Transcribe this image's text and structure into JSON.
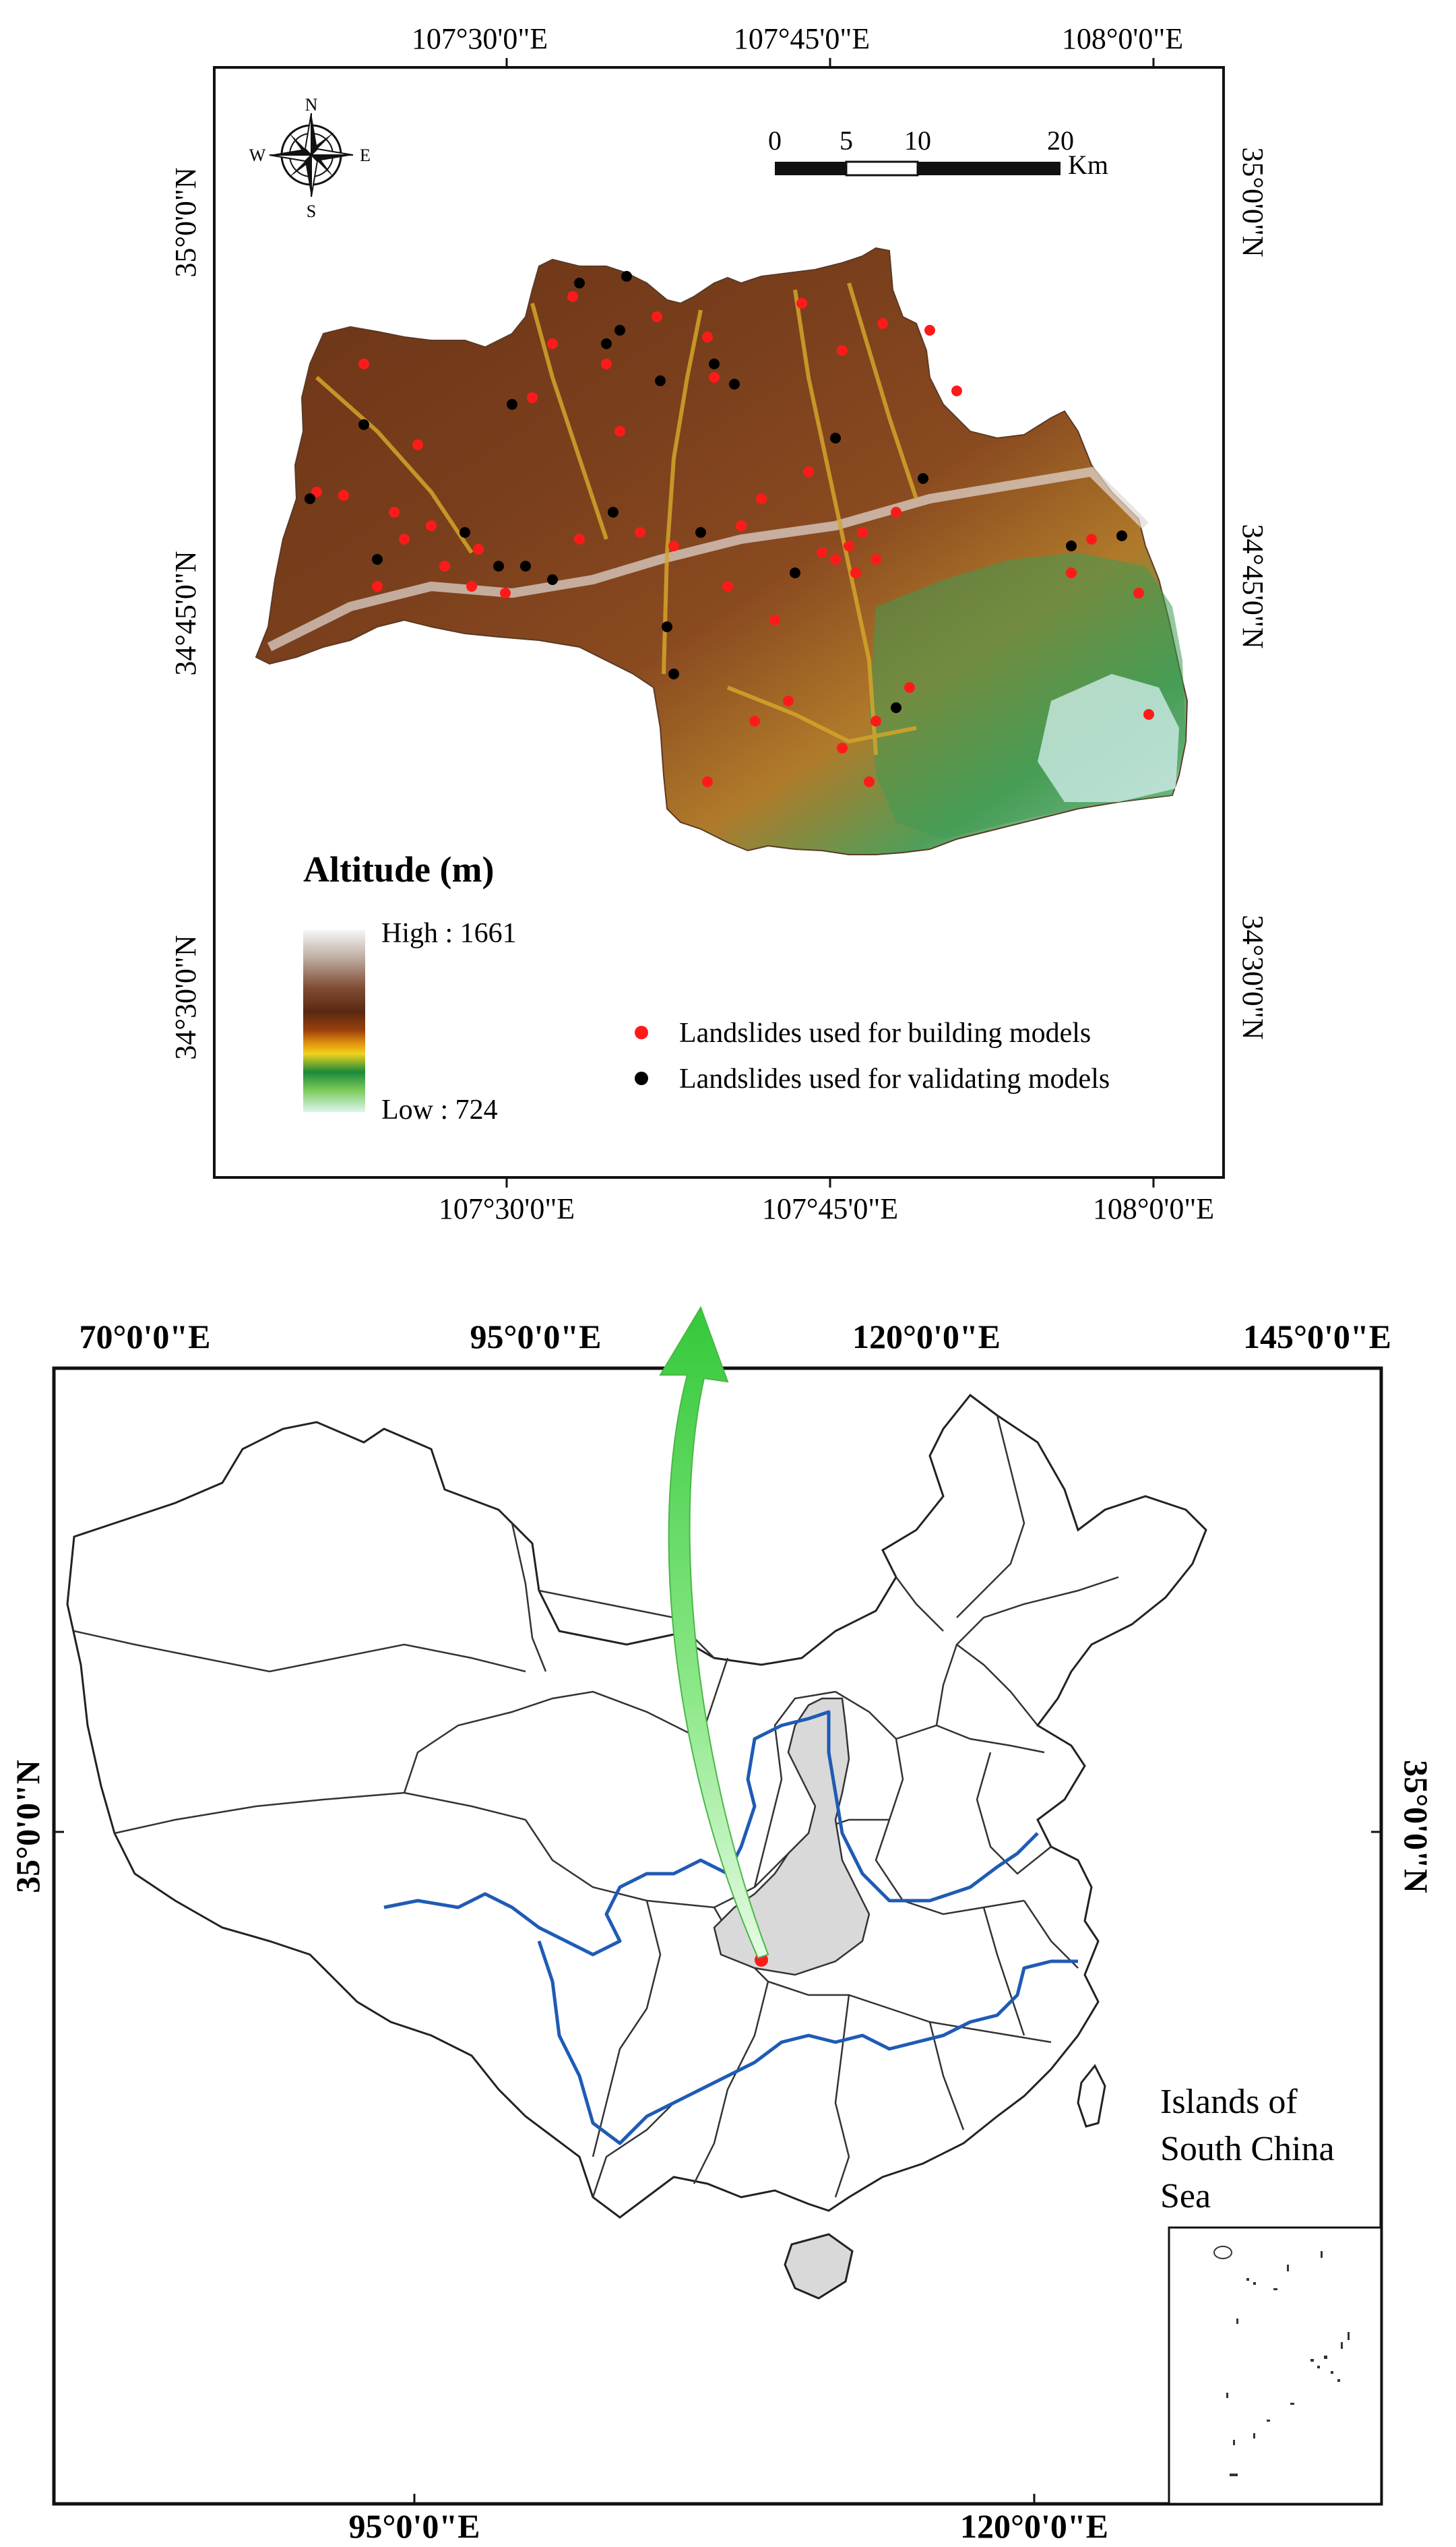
{
  "top_map": {
    "lon_labels": [
      "107°30'0\"E",
      "107°45'0\"E",
      "108°0'0\"E"
    ],
    "lat_labels": [
      "35°0'0\"N",
      "34°45'0\"N",
      "34°30'0\"N"
    ],
    "compass": {
      "n": "N",
      "s": "S",
      "e": "E",
      "w": "W"
    },
    "scale": {
      "ticks": [
        "0",
        "5",
        "10",
        "20"
      ],
      "unit": "Km"
    },
    "legend": {
      "title": "Altitude (m)",
      "high": "High : 1661",
      "low": "Low : 724",
      "ramp_colors": [
        "#f4f4f4",
        "#b9a79b",
        "#7d4a30",
        "#5c2a14",
        "#8a3c0e",
        "#d9860e",
        "#e7c81e",
        "#1f8c3a",
        "#6bc04a",
        "#d8f3ee"
      ],
      "building": "Landslides used for building models",
      "validating": "Landslides used for validating models",
      "building_color": "#ff1a1a",
      "validating_color": "#000000"
    }
  },
  "bottom_map": {
    "lon_top": [
      "70°0'0\"E",
      "95°0'0\"E",
      "120°0'0\"E",
      "145°0'0\"E"
    ],
    "lon_bottom": [
      "95°0'0\"E",
      "120°0'0\"E"
    ],
    "lat_label": "35°0'0\"N",
    "inset_title": [
      "Islands of",
      "South China",
      "Sea"
    ],
    "river_color": "#1f5bb5",
    "province_fill": "#d9d9d9",
    "arrow_color": "#5fe05a"
  }
}
